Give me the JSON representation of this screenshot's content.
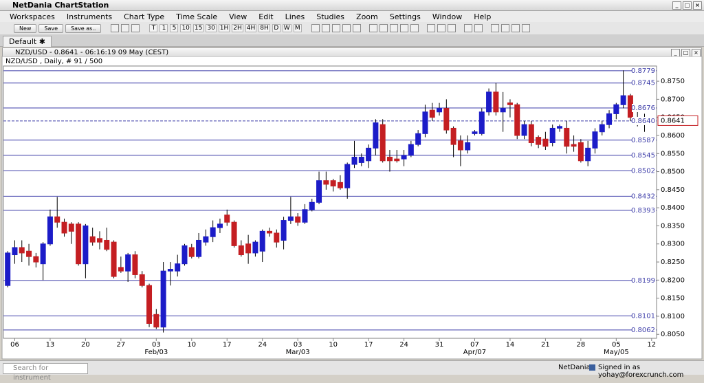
{
  "window": {
    "title": "NetDania ChartStation"
  },
  "menu": [
    "Workspaces",
    "Instruments",
    "Chart Type",
    "Time Scale",
    "View",
    "Edit",
    "Lines",
    "Studies",
    "Zoom",
    "Settings",
    "Window",
    "Help"
  ],
  "toolbar": {
    "buttons": [
      "New",
      "Save",
      "Save as.."
    ],
    "periods": [
      "T",
      "1",
      "5",
      "10",
      "15",
      "30",
      "1H",
      "2H",
      "4H",
      "8H",
      "D",
      "W",
      "M"
    ]
  },
  "tabs": [
    "Default"
  ],
  "chart_window": {
    "title": "NZD/USD - 0.8641 - 06:16:19  09 May (CEST)"
  },
  "chart_data": {
    "type": "candlestick",
    "subtitle": "NZD/USD , Daily, # 91 / 500",
    "open": [
      0.8185,
      0.827,
      0.829,
      0.828,
      0.8265,
      0.8245,
      0.83,
      0.8375,
      0.836,
      0.8355,
      0.8355,
      0.8245,
      0.832,
      0.8315,
      0.831,
      0.8305,
      0.8235,
      0.8225,
      0.827,
      0.8215,
      0.8185,
      0.8105,
      0.807,
      0.8225,
      0.8225,
      0.8245,
      0.829,
      0.8265,
      0.8305,
      0.832,
      0.8345,
      0.838,
      0.836,
      0.8295,
      0.83,
      0.8275,
      0.828,
      0.8335,
      0.833,
      0.831,
      0.8365,
      0.8375,
      0.836,
      0.8395,
      0.8415,
      0.8475,
      0.8475,
      0.847,
      0.8455,
      0.852,
      0.8525,
      0.853,
      0.8565,
      0.863,
      0.854,
      0.8535,
      0.8535,
      0.8545,
      0.8575,
      0.8605,
      0.867,
      0.8665,
      0.8675,
      0.862,
      0.8585,
      0.856,
      0.8605,
      0.8605,
      0.8665,
      0.872,
      0.8665,
      0.869,
      0.8685,
      0.86,
      0.863,
      0.8595,
      0.859,
      0.858,
      0.862,
      0.862,
      0.8575,
      0.858,
      0.853,
      0.8565,
      0.861,
      0.863,
      0.866,
      0.8685,
      0.871,
      0.865,
      0.8648
    ],
    "high": [
      0.828,
      0.831,
      0.831,
      0.83,
      0.8275,
      0.8305,
      0.8395,
      0.843,
      0.837,
      0.836,
      0.836,
      0.8355,
      0.8345,
      0.8335,
      0.8345,
      0.831,
      0.8265,
      0.8275,
      0.828,
      0.8225,
      0.819,
      0.812,
      0.825,
      0.825,
      0.827,
      0.83,
      0.83,
      0.833,
      0.834,
      0.8365,
      0.837,
      0.8395,
      0.8365,
      0.831,
      0.8325,
      0.831,
      0.834,
      0.8345,
      0.834,
      0.8375,
      0.843,
      0.8385,
      0.841,
      0.8425,
      0.85,
      0.85,
      0.848,
      0.849,
      0.8525,
      0.8585,
      0.855,
      0.8575,
      0.8645,
      0.8645,
      0.856,
      0.856,
      0.856,
      0.8585,
      0.8615,
      0.8685,
      0.869,
      0.869,
      0.87,
      0.8625,
      0.86,
      0.86,
      0.8615,
      0.8675,
      0.873,
      0.8745,
      0.872,
      0.87,
      0.869,
      0.864,
      0.864,
      0.86,
      0.861,
      0.863,
      0.863,
      0.864,
      0.86,
      0.859,
      0.8585,
      0.862,
      0.864,
      0.867,
      0.869,
      0.878,
      0.8715,
      0.867,
      0.866
    ],
    "low": [
      0.818,
      0.8245,
      0.825,
      0.824,
      0.8235,
      0.82,
      0.8295,
      0.8345,
      0.832,
      0.83,
      0.824,
      0.8205,
      0.8295,
      0.8285,
      0.828,
      0.8205,
      0.822,
      0.8195,
      0.8205,
      0.818,
      0.807,
      0.8065,
      0.8055,
      0.8185,
      0.821,
      0.824,
      0.826,
      0.826,
      0.8295,
      0.8305,
      0.833,
      0.835,
      0.829,
      0.8265,
      0.8245,
      0.8265,
      0.825,
      0.832,
      0.829,
      0.8285,
      0.8355,
      0.835,
      0.8355,
      0.839,
      0.841,
      0.845,
      0.8445,
      0.845,
      0.8425,
      0.851,
      0.8515,
      0.851,
      0.8545,
      0.8525,
      0.85,
      0.8525,
      0.8515,
      0.854,
      0.857,
      0.8595,
      0.864,
      0.8655,
      0.8605,
      0.854,
      0.8515,
      0.855,
      0.86,
      0.86,
      0.8655,
      0.8655,
      0.861,
      0.865,
      0.859,
      0.859,
      0.857,
      0.8565,
      0.856,
      0.857,
      0.861,
      0.855,
      0.8555,
      0.8525,
      0.8515,
      0.855,
      0.86,
      0.862,
      0.8645,
      0.8675,
      0.864,
      0.8625,
      0.861
    ],
    "close": [
      0.8275,
      0.829,
      0.8275,
      0.8265,
      0.825,
      0.83,
      0.8375,
      0.836,
      0.833,
      0.8335,
      0.8245,
      0.835,
      0.8305,
      0.8305,
      0.8285,
      0.821,
      0.8225,
      0.827,
      0.8215,
      0.8185,
      0.808,
      0.807,
      0.8225,
      0.823,
      0.8245,
      0.8295,
      0.8265,
      0.831,
      0.832,
      0.8345,
      0.8355,
      0.836,
      0.8295,
      0.827,
      0.8275,
      0.8305,
      0.8335,
      0.833,
      0.8305,
      0.8365,
      0.8375,
      0.836,
      0.8395,
      0.8415,
      0.8475,
      0.8465,
      0.846,
      0.8455,
      0.852,
      0.854,
      0.854,
      0.8565,
      0.8635,
      0.853,
      0.853,
      0.853,
      0.8545,
      0.8575,
      0.8605,
      0.8665,
      0.865,
      0.8675,
      0.8615,
      0.8575,
      0.856,
      0.858,
      0.861,
      0.8665,
      0.872,
      0.8665,
      0.8675,
      0.8685,
      0.86,
      0.863,
      0.858,
      0.8575,
      0.857,
      0.862,
      0.8625,
      0.857,
      0.857,
      0.853,
      0.8565,
      0.861,
      0.863,
      0.866,
      0.8685,
      0.871,
      0.865,
      0.8645,
      0.8641
    ],
    "up_color": "#1c1cc8",
    "down_color": "#c41e22",
    "xlim": [
      -0.6,
      91.7
    ],
    "ylim": [
      0.8039,
      0.8792
    ],
    "yticks": [
      {
        "value": 0.805,
        "label": "0.8050"
      },
      {
        "value": 0.81,
        "label": "0.8100"
      },
      {
        "value": 0.815,
        "label": "0.8150"
      },
      {
        "value": 0.82,
        "label": "0.8200"
      },
      {
        "value": 0.825,
        "label": "0.8250"
      },
      {
        "value": 0.83,
        "label": "0.8300"
      },
      {
        "value": 0.835,
        "label": "0.8350"
      },
      {
        "value": 0.84,
        "label": "0.8400"
      },
      {
        "value": 0.845,
        "label": "0.8450"
      },
      {
        "value": 0.85,
        "label": "0.8500"
      },
      {
        "value": 0.855,
        "label": "0.8550"
      },
      {
        "value": 0.86,
        "label": "0.8600"
      },
      {
        "value": 0.865,
        "label": "0.8650"
      },
      {
        "value": 0.87,
        "label": "0.8700"
      },
      {
        "value": 0.875,
        "label": "0.8750"
      }
    ],
    "xticks": [
      {
        "value": 1,
        "label": "06"
      },
      {
        "value": 6,
        "label": "13"
      },
      {
        "value": 11,
        "label": "20"
      },
      {
        "value": 16,
        "label": "27"
      },
      {
        "value": 21,
        "label": "03"
      },
      {
        "value": 26,
        "label": "10"
      },
      {
        "value": 31,
        "label": "17"
      },
      {
        "value": 36,
        "label": "24"
      },
      {
        "value": 41,
        "label": "03"
      },
      {
        "value": 46,
        "label": "10"
      },
      {
        "value": 51,
        "label": "17"
      },
      {
        "value": 56,
        "label": "24"
      },
      {
        "value": 61,
        "label": "31"
      },
      {
        "value": 66,
        "label": "07"
      },
      {
        "value": 71,
        "label": "14"
      },
      {
        "value": 76,
        "label": "21"
      },
      {
        "value": 81,
        "label": "28"
      },
      {
        "value": 86,
        "label": "05"
      },
      {
        "value": 91,
        "label": "12"
      }
    ],
    "xticks_months": [
      {
        "value": 21,
        "label": "Feb/03"
      },
      {
        "value": 41,
        "label": "Mar/03"
      },
      {
        "value": 66,
        "label": "Apr/07"
      },
      {
        "value": 86,
        "label": "May/05"
      }
    ],
    "levels": [
      0.8779,
      0.8745,
      0.8676,
      {
        "value": 0.864,
        "label": "0.8640"
      },
      0.8587,
      0.8545,
      0.8502,
      0.8432,
      0.8393,
      0.8199,
      0.8101,
      0.8062
    ],
    "level_color": "#3c3ca8",
    "current_price": 0.8641,
    "current_price_color": "#c41e22",
    "grid": false
  },
  "status": {
    "search_placeholder": "Search for instrument",
    "brand": "NetDania",
    "signed_in": "Signed in as yohay@forexcrunch.com"
  }
}
